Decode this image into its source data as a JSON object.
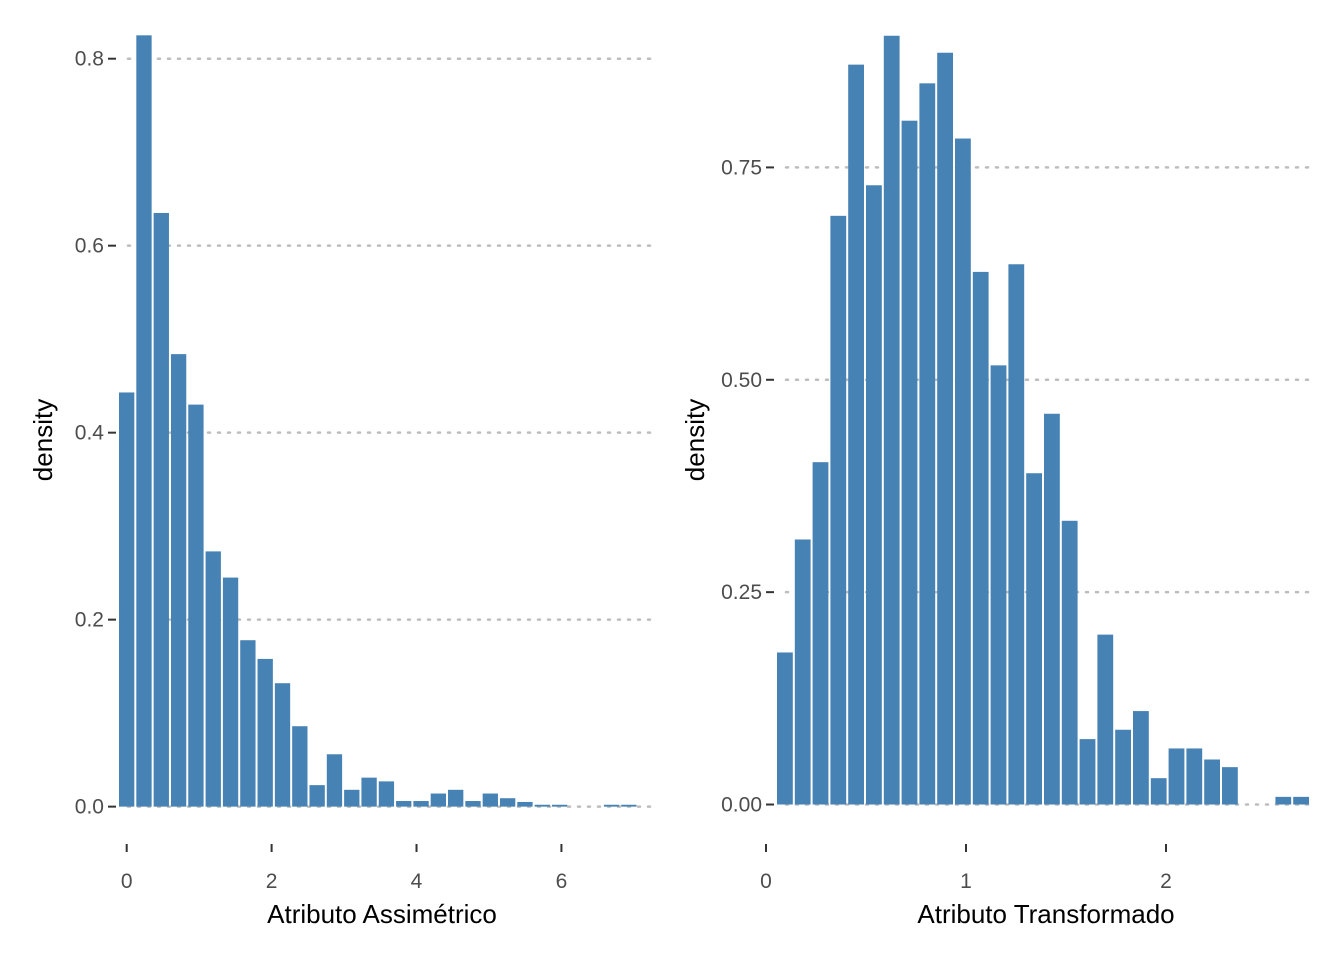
{
  "colors": {
    "bar": "#4682B4",
    "grid": "#bdbdbd",
    "tick_text": "#4d4d4d",
    "title_text": "#000000"
  },
  "chart_data": [
    {
      "type": "bar",
      "xlabel": "Atributo Assimétrico",
      "ylabel": "density",
      "grid": "horizontal-dotted",
      "xlim": [
        -0.12,
        7.25
      ],
      "ylim": [
        -0.025,
        0.82
      ],
      "x_ticks": [
        0,
        2,
        4,
        6
      ],
      "x_tick_labels": [
        "0",
        "2",
        "4",
        "6"
      ],
      "y_ticks": [
        0,
        0.2,
        0.4,
        0.6,
        0.8
      ],
      "y_tick_labels": [
        "0.0",
        "0.2",
        "0.4",
        "0.6",
        "0.8"
      ],
      "bin_width": 0.239,
      "bin_start": -0.12,
      "values": [
        0.443,
        0.825,
        0.635,
        0.484,
        0.43,
        0.273,
        0.245,
        0.178,
        0.158,
        0.132,
        0.086,
        0.023,
        0.056,
        0.018,
        0.031,
        0.027,
        0.006,
        0.006,
        0.014,
        0.018,
        0.006,
        0.014,
        0.009,
        0.005,
        0.002,
        0.002,
        0.0,
        0.0,
        0.002,
        0.002
      ]
    },
    {
      "type": "bar",
      "xlabel": "Atributo Transformado",
      "ylabel": "density",
      "grid": "horizontal-dotted",
      "xlim": [
        0.05,
        2.72
      ],
      "ylim": [
        -0.03,
        0.9
      ],
      "x_ticks": [
        0,
        1,
        2
      ],
      "x_tick_labels": [
        "0",
        "1",
        "2"
      ],
      "y_ticks": [
        0,
        0.25,
        0.5,
        0.75
      ],
      "y_tick_labels": [
        "0.00",
        "0.25",
        "0.50",
        "0.75"
      ],
      "bin_width": 0.089,
      "bin_start": 0.05,
      "values": [
        0.179,
        0.312,
        0.403,
        0.693,
        0.871,
        0.729,
        0.905,
        0.805,
        0.849,
        0.885,
        0.784,
        0.627,
        0.517,
        0.636,
        0.39,
        0.46,
        0.334,
        0.077,
        0.2,
        0.088,
        0.11,
        0.031,
        0.066,
        0.066,
        0.053,
        0.044,
        0.0,
        0.0,
        0.009,
        0.009
      ]
    }
  ]
}
